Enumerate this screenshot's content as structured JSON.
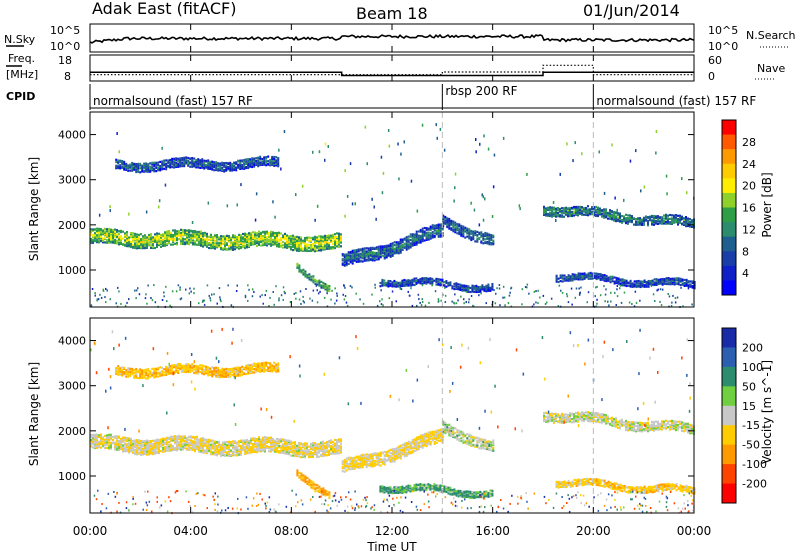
{
  "header": {
    "radar": "Adak East (fitACF)",
    "beam": "Beam 18",
    "date": "01/Jun/2014"
  },
  "sky_panel": {
    "left_label": "N.Sky",
    "right_label": "N.Search",
    "y_ticks_left": [
      "10^5",
      "10^0"
    ],
    "y_ticks_right": [
      "10^5",
      "10^0"
    ]
  },
  "freq_panel": {
    "left_label_top": "Freq.",
    "left_label_bottom": "[MHz]",
    "right_label": "Nave",
    "y_ticks_left": [
      "18",
      "8"
    ],
    "y_ticks_right": [
      "60",
      "0"
    ]
  },
  "cpid": {
    "label": "CPID",
    "segments": [
      {
        "text": "normalsound (fast) 157 RF",
        "start_hour": 0,
        "end_hour": 14
      },
      {
        "text": "rbsp 200 RF",
        "start_hour": 14,
        "end_hour": 20
      },
      {
        "text": "normalsound (fast) 157 RF",
        "start_hour": 20,
        "end_hour": 24
      }
    ]
  },
  "x_axis": {
    "title": "Time UT",
    "tick_labels": [
      "00:00",
      "04:00",
      "08:00",
      "12:00",
      "16:00",
      "20:00",
      "00:00"
    ],
    "range_hours": [
      0,
      24
    ]
  },
  "power_panel": {
    "ylabel": "Slant Range [km]",
    "y_ticks": [
      "4000",
      "3000",
      "2000",
      "1000"
    ],
    "colorbar_label": "Power [dB]",
    "colorbar_ticks": [
      "28",
      "24",
      "20",
      "16",
      "12",
      "8",
      "4"
    ],
    "colorbar_colors": [
      "#ff0000",
      "#ff5a00",
      "#ff9900",
      "#ffcc00",
      "#ffee00",
      "#8fd12a",
      "#2e9e47",
      "#2e8c6e",
      "#1f5f8f",
      "#1a3ea8",
      "#1020c8",
      "#0000ff"
    ]
  },
  "velocity_panel": {
    "ylabel": "Slant Range [km]",
    "y_ticks": [
      "4000",
      "3000",
      "2000",
      "1000"
    ],
    "colorbar_label": "Velocity [m s^-1]",
    "colorbar_ticks": [
      "200",
      "100",
      "50",
      "15",
      "-15",
      "-50",
      "-100",
      "-200"
    ],
    "colorbar_colors": [
      "#1a2ba8",
      "#2c5fb0",
      "#2e8c6e",
      "#6fcf40",
      "#c8c8c8",
      "#ffcc00",
      "#ff9900",
      "#ff4400",
      "#ff0000"
    ]
  },
  "chart_data": {
    "type": "heatmap",
    "x_units": "hours UT",
    "y_units": "km",
    "ylim": [
      180,
      4500
    ],
    "xlim": [
      0,
      24
    ],
    "frequency_MHz_steps": [
      {
        "start_hour": 0,
        "end_hour": 10,
        "value": 12
      },
      {
        "start_hour": 10,
        "end_hour": 18,
        "value": 10.5
      },
      {
        "start_hour": 18,
        "end_hour": 24,
        "value": 12
      }
    ],
    "nave_steps": [
      {
        "start_hour": 0,
        "end_hour": 14,
        "value": 10
      },
      {
        "start_hour": 14,
        "end_hour": 18,
        "value": 18
      },
      {
        "start_hour": 18,
        "end_hour": 20,
        "value": 38
      },
      {
        "start_hour": 20,
        "end_hour": 24,
        "value": 10
      }
    ],
    "scatter_bands": [
      {
        "start_hour": 0,
        "end_hour": 10,
        "range_start_km": 1750,
        "range_end_km": 1650,
        "width_km": 320,
        "power_dB": 18,
        "velocity_ms": -10
      },
      {
        "start_hour": 1,
        "end_hour": 7.5,
        "range_start_km": 3350,
        "range_end_km": 3400,
        "width_km": 200,
        "power_dB": 8,
        "velocity_ms": -40
      },
      {
        "start_hour": 10,
        "end_hour": 14,
        "range_start_km": 1200,
        "range_end_km": 1900,
        "width_km": 300,
        "power_dB": 10,
        "velocity_ms": -20
      },
      {
        "start_hour": 14,
        "end_hour": 16,
        "range_start_km": 2100,
        "range_end_km": 1700,
        "width_km": 250,
        "power_dB": 9,
        "velocity_ms": 5
      },
      {
        "start_hour": 18,
        "end_hour": 24,
        "range_start_km": 2400,
        "range_end_km": 2050,
        "width_km": 200,
        "power_dB": 11,
        "velocity_ms": 0
      },
      {
        "start_hour": 11.5,
        "end_hour": 16,
        "range_start_km": 800,
        "range_end_km": 650,
        "width_km": 150,
        "power_dB": 7,
        "velocity_ms": 40
      },
      {
        "start_hour": 8.2,
        "end_hour": 9.5,
        "range_start_km": 1150,
        "range_end_km": 600,
        "width_km": 150,
        "power_dB": 14,
        "velocity_ms": -60
      },
      {
        "start_hour": 18.5,
        "end_hour": 24,
        "range_start_km": 900,
        "range_end_km": 700,
        "width_km": 150,
        "power_dB": 7,
        "velocity_ms": -30
      }
    ]
  }
}
